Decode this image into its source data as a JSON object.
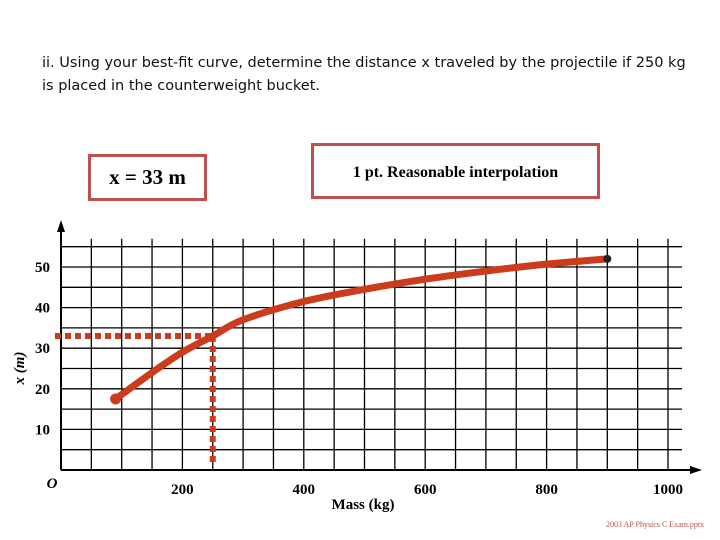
{
  "question": "ii. Using your best-fit curve, determine the distance x traveled by the projectile if 250 kg is placed in the counterweight bucket.",
  "answer": "x = 33 m",
  "rubric": "1 pt. Reasonable interpolation",
  "credit": "2003 AP Physics C Exam.pptx",
  "colors": {
    "curve": "#cc3b1b",
    "box_border": "#c0504d",
    "grid": "#000000"
  },
  "chart_data": {
    "type": "line",
    "title": "",
    "xlabel": "Mass (kg)",
    "ylabel": "x (m)",
    "origin_label": "O",
    "xlim": [
      0,
      1000
    ],
    "ylim": [
      0,
      55
    ],
    "grid": true,
    "x_ticks": [
      200,
      400,
      600,
      800,
      1000
    ],
    "x_tick_labels": [
      "200",
      "400",
      "600",
      "800",
      "1000"
    ],
    "y_ticks": [
      10,
      20,
      30,
      40,
      50
    ],
    "y_tick_labels": [
      "10",
      "20",
      "30",
      "40",
      "50"
    ],
    "series": [
      {
        "name": "best-fit curve",
        "x": [
          90,
          150,
          200,
          250,
          300,
          400,
          500,
          600,
          700,
          800,
          900
        ],
        "y": [
          17.5,
          24,
          29,
          33,
          37,
          41.5,
          44.5,
          47,
          49,
          50.7,
          52
        ]
      }
    ],
    "annotations": [
      {
        "type": "interpolation",
        "x": 250,
        "y": 33
      }
    ]
  }
}
